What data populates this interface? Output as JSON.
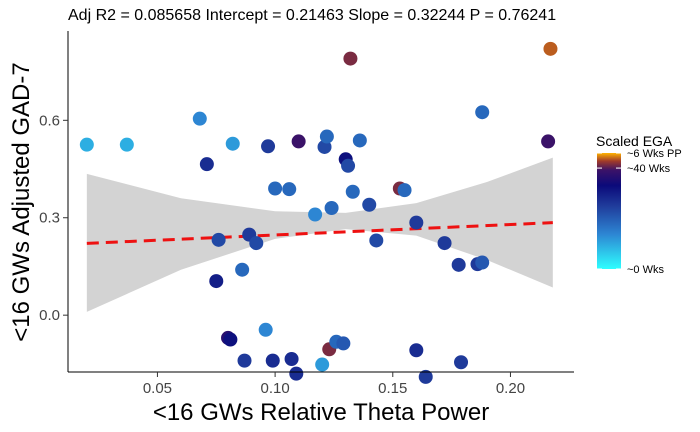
{
  "chart_data": {
    "type": "scatter",
    "title": "Adj R2 =  0.085658 Intercept = 0.21463  Slope = 0.32244  P = 0.76241",
    "xlabel": "<16 GWs Relative Theta Power",
    "ylabel": "<16 GWs Adjusted GAD-7",
    "xlim": [
      0.012,
      0.227
    ],
    "ylim": [
      -0.175,
      0.875
    ],
    "x_ticks": [
      {
        "value": 0.05,
        "label": "0.05"
      },
      {
        "value": 0.1,
        "label": "0.10"
      },
      {
        "value": 0.15,
        "label": "0.15"
      },
      {
        "value": 0.2,
        "label": "0.20"
      }
    ],
    "y_ticks": [
      {
        "value": 0.0,
        "label": "0.0"
      },
      {
        "value": 0.3,
        "label": "0.3"
      },
      {
        "value": 0.6,
        "label": "0.6"
      }
    ],
    "grid": false,
    "regression": {
      "intercept": 0.21463,
      "slope": 0.32244,
      "x_range": [
        0.02,
        0.218
      ],
      "color": "#ee1111",
      "style": "dashed"
    },
    "confidence_band": {
      "x": [
        0.02,
        0.06,
        0.1,
        0.13,
        0.16,
        0.19,
        0.218
      ],
      "upper": [
        0.435,
        0.36,
        0.32,
        0.315,
        0.345,
        0.41,
        0.485
      ],
      "lower": [
        0.01,
        0.14,
        0.235,
        0.265,
        0.245,
        0.17,
        0.085
      ],
      "color": "#d3d3d3"
    },
    "points": [
      {
        "x": 0.02,
        "y": 0.525,
        "ega": 0.2
      },
      {
        "x": 0.037,
        "y": 0.525,
        "ega": 0.2
      },
      {
        "x": 0.068,
        "y": 0.605,
        "ega": 0.3
      },
      {
        "x": 0.071,
        "y": 0.465,
        "ega": 0.6
      },
      {
        "x": 0.082,
        "y": 0.528,
        "ega": 0.25
      },
      {
        "x": 0.097,
        "y": 0.52,
        "ega": 0.55
      },
      {
        "x": 0.11,
        "y": 0.535,
        "ega": 0.85
      },
      {
        "x": 0.121,
        "y": 0.518,
        "ega": 0.5
      },
      {
        "x": 0.122,
        "y": 0.55,
        "ega": 0.4
      },
      {
        "x": 0.13,
        "y": 0.48,
        "ega": 0.7
      },
      {
        "x": 0.131,
        "y": 0.46,
        "ega": 0.5
      },
      {
        "x": 0.132,
        "y": 0.79,
        "ega": 0.9
      },
      {
        "x": 0.136,
        "y": 0.538,
        "ega": 0.4
      },
      {
        "x": 0.188,
        "y": 0.625,
        "ega": 0.4
      },
      {
        "x": 0.217,
        "y": 0.82,
        "ega": 0.95
      },
      {
        "x": 0.216,
        "y": 0.535,
        "ega": 0.85
      },
      {
        "x": 0.1,
        "y": 0.39,
        "ega": 0.4
      },
      {
        "x": 0.106,
        "y": 0.388,
        "ega": 0.4
      },
      {
        "x": 0.117,
        "y": 0.31,
        "ega": 0.3
      },
      {
        "x": 0.124,
        "y": 0.33,
        "ega": 0.4
      },
      {
        "x": 0.133,
        "y": 0.38,
        "ega": 0.4
      },
      {
        "x": 0.14,
        "y": 0.34,
        "ega": 0.5
      },
      {
        "x": 0.153,
        "y": 0.39,
        "ega": 0.9
      },
      {
        "x": 0.155,
        "y": 0.385,
        "ega": 0.4
      },
      {
        "x": 0.16,
        "y": 0.285,
        "ega": 0.55
      },
      {
        "x": 0.143,
        "y": 0.23,
        "ega": 0.5
      },
      {
        "x": 0.076,
        "y": 0.232,
        "ega": 0.5
      },
      {
        "x": 0.089,
        "y": 0.248,
        "ega": 0.55
      },
      {
        "x": 0.092,
        "y": 0.222,
        "ega": 0.5
      },
      {
        "x": 0.086,
        "y": 0.14,
        "ega": 0.4
      },
      {
        "x": 0.075,
        "y": 0.105,
        "ega": 0.65
      },
      {
        "x": 0.172,
        "y": 0.222,
        "ega": 0.55
      },
      {
        "x": 0.178,
        "y": 0.155,
        "ega": 0.55
      },
      {
        "x": 0.186,
        "y": 0.157,
        "ega": 0.55
      },
      {
        "x": 0.188,
        "y": 0.162,
        "ega": 0.45
      },
      {
        "x": 0.096,
        "y": -0.045,
        "ega": 0.3
      },
      {
        "x": 0.08,
        "y": -0.07,
        "ega": 0.8
      },
      {
        "x": 0.081,
        "y": -0.075,
        "ega": 0.7
      },
      {
        "x": 0.087,
        "y": -0.14,
        "ega": 0.55
      },
      {
        "x": 0.099,
        "y": -0.14,
        "ega": 0.6
      },
      {
        "x": 0.107,
        "y": -0.135,
        "ega": 0.6
      },
      {
        "x": 0.109,
        "y": -0.18,
        "ega": 0.6
      },
      {
        "x": 0.12,
        "y": -0.152,
        "ega": 0.25
      },
      {
        "x": 0.123,
        "y": -0.105,
        "ega": 0.9
      },
      {
        "x": 0.126,
        "y": -0.082,
        "ega": 0.4
      },
      {
        "x": 0.129,
        "y": -0.087,
        "ega": 0.45
      },
      {
        "x": 0.16,
        "y": -0.108,
        "ega": 0.6
      },
      {
        "x": 0.164,
        "y": -0.19,
        "ega": 0.55
      },
      {
        "x": 0.179,
        "y": -0.145,
        "ega": 0.55
      }
    ],
    "legend": {
      "title": "Scaled EGA",
      "placement": "right",
      "labels": [
        {
          "text": "~6 Wks PP",
          "position": 1.0
        },
        {
          "text": "~40 Wks",
          "position": 0.87
        },
        {
          "text": "~0 Wks",
          "position": 0.0
        }
      ],
      "gradient_stops": [
        {
          "offset": 0.0,
          "color": "#2effff"
        },
        {
          "offset": 0.3,
          "color": "#2d86d3"
        },
        {
          "offset": 0.55,
          "color": "#1f3a9a"
        },
        {
          "offset": 0.72,
          "color": "#0b0a7a"
        },
        {
          "offset": 0.85,
          "color": "#3a1268"
        },
        {
          "offset": 0.93,
          "color": "#a03a2a"
        },
        {
          "offset": 1.0,
          "color": "#ffb300"
        }
      ]
    }
  }
}
